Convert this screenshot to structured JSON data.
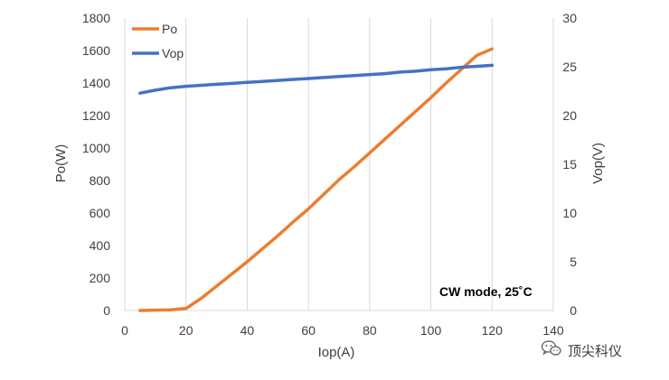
{
  "chart_data": {
    "type": "line",
    "title": "",
    "xlabel": "Iop(A)",
    "ylabel": "Po(W)",
    "y2label": "Vop(V)",
    "xlim": [
      0,
      140
    ],
    "ylim": [
      0,
      1800
    ],
    "y2lim": [
      0,
      30
    ],
    "x_ticks": [
      "0",
      "20",
      "40",
      "60",
      "80",
      "100",
      "120",
      "140"
    ],
    "y_ticks": [
      "0",
      "200",
      "400",
      "600",
      "800",
      "1000",
      "1200",
      "1400",
      "1600",
      "1800"
    ],
    "y2_ticks": [
      "0",
      "5",
      "10",
      "15",
      "20",
      "25",
      "30"
    ],
    "grid": "vertical",
    "legend_position": "top-left",
    "annotation": "CW mode, 25˚C",
    "series": [
      {
        "name": "Po",
        "axis": "left",
        "color": "#ED7D31",
        "x": [
          5,
          10,
          15,
          20,
          25,
          30,
          35,
          40,
          45,
          50,
          55,
          60,
          65,
          70,
          75,
          80,
          85,
          90,
          95,
          100,
          105,
          110,
          115,
          120
        ],
        "values": [
          0,
          2,
          4,
          12,
          75,
          150,
          225,
          300,
          380,
          460,
          545,
          625,
          715,
          805,
          885,
          970,
          1055,
          1140,
          1225,
          1310,
          1400,
          1485,
          1570,
          1610
        ]
      },
      {
        "name": "Vop",
        "axis": "right",
        "color": "#4472C4",
        "x": [
          5,
          10,
          15,
          20,
          25,
          30,
          35,
          40,
          45,
          50,
          55,
          60,
          65,
          70,
          75,
          80,
          85,
          90,
          95,
          100,
          105,
          110,
          115,
          120
        ],
        "values": [
          22.3,
          22.6,
          22.85,
          23.0,
          23.1,
          23.2,
          23.3,
          23.4,
          23.5,
          23.6,
          23.7,
          23.8,
          23.9,
          24.0,
          24.1,
          24.2,
          24.3,
          24.45,
          24.55,
          24.7,
          24.8,
          24.95,
          25.05,
          25.15
        ]
      }
    ]
  },
  "watermark": {
    "text": "顶尖科仪",
    "icon": "wechat-icon"
  }
}
